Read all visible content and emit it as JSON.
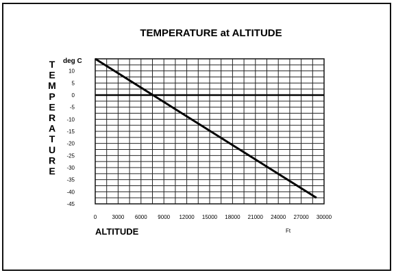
{
  "chart_data": {
    "type": "line",
    "title": "TEMPERATURE at  ALTITUDE",
    "xlabel": "ALTITUDE",
    "xunit": "Ft",
    "ylabel": "TEMPERATURE",
    "yunit": "deg C",
    "xlim": [
      0,
      30000
    ],
    "ylim": [
      -45,
      15
    ],
    "xticks": [
      0,
      3000,
      6000,
      9000,
      12000,
      15000,
      18000,
      21000,
      24000,
      27000,
      30000
    ],
    "yticks": [
      10,
      5,
      0,
      -5,
      -10,
      -15,
      -20,
      -25,
      -30,
      -35,
      -40,
      -45
    ],
    "grid": true,
    "series": [
      {
        "x": [
          0,
          29000
        ],
        "y": [
          15,
          -42.5
        ]
      }
    ],
    "zero_line": 0
  }
}
